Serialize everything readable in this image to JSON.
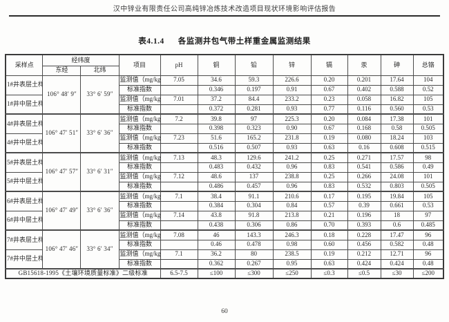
{
  "page": {
    "header": "汉中锌业有限责任公司高纯锌冶炼技术改造项目现状环境影响评估报告",
    "page_number": "60"
  },
  "table": {
    "title_no": "表4.1.4",
    "title_text": "各监测井包气带土样重金属监测结果",
    "headers": {
      "sample_point": "采样点",
      "coordinates": "经纬度",
      "east": "东经",
      "north": "北纬",
      "item": "项目",
      "ph": "pH",
      "metals": [
        "铜",
        "铅",
        "锌",
        "镉",
        "汞",
        "砷",
        "总铬"
      ]
    },
    "row_labels": {
      "monitor": "监测值（mg/kg）",
      "index": "标准指数"
    },
    "groups": [
      {
        "east": "106° 48′ 9″",
        "north": "33° 6′ 59″",
        "samples": [
          {
            "name": "1#井表层土样",
            "monitor": [
              "7.05",
              "34.6",
              "59.3",
              "226.6",
              "0.20",
              "0.201",
              "17.64",
              "104"
            ],
            "index": [
              "",
              "0.346",
              "0.197",
              "0.91",
              "0.67",
              "0.402",
              "0.588",
              "0.52"
            ]
          },
          {
            "name": "1#井中层土样",
            "monitor": [
              "7.01",
              "37.2",
              "84.4",
              "233.2",
              "0.23",
              "0.058",
              "16.82",
              "105"
            ],
            "index": [
              "",
              "0.372",
              "0.281",
              "0.93",
              "0.77",
              "0.116",
              "0.560",
              "0.53"
            ]
          }
        ]
      },
      {
        "east": "106° 47′ 51″",
        "north": "33° 6′ 36″",
        "samples": [
          {
            "name": "4#井表层土样",
            "monitor": [
              "7.2",
              "39.8",
              "97",
              "225.3",
              "0.20",
              "0.084",
              "17.38",
              "101"
            ],
            "index": [
              "",
              "0.398",
              "0.323",
              "0.90",
              "0.67",
              "0.168",
              "0.58",
              "0.505"
            ]
          },
          {
            "name": "4#井中层土样",
            "monitor": [
              "7.23",
              "51.6",
              "165.2",
              "231.8",
              "0.19",
              "0.080",
              "18.24",
              "103"
            ],
            "index": [
              "",
              "0.516",
              "0.507",
              "0.93",
              "0.63",
              "0.16",
              "0.608",
              "0.515"
            ]
          }
        ]
      },
      {
        "east": "106° 47′ 57″",
        "north": "33° 6′ 31″",
        "samples": [
          {
            "name": "5#井表层土样",
            "monitor": [
              "7.13",
              "48.3",
              "129.6",
              "241.2",
              "0.25",
              "0.271",
              "17.57",
              "98"
            ],
            "index": [
              "",
              "0.483",
              "0.432",
              "0.96",
              "0.83",
              "0.541",
              "0.586",
              "0.49"
            ]
          },
          {
            "name": "5#井中层土样",
            "monitor": [
              "7.12",
              "48.6",
              "137",
              "238.8",
              "0.25",
              "0.266",
              "24.08",
              "101"
            ],
            "index": [
              "",
              "0.486",
              "0.457",
              "0.96",
              "0.83",
              "0.532",
              "0.803",
              "0.505"
            ]
          }
        ]
      },
      {
        "east": "106° 47′ 49″",
        "north": "33° 6′ 36″",
        "samples": [
          {
            "name": "6#井表层土样",
            "monitor": [
              "7.1",
              "38.4",
              "91.1",
              "210.6",
              "0.17",
              "0.195",
              "19.84",
              "105"
            ],
            "index": [
              "",
              "0.384",
              "0.304",
              "0.84",
              "0.57",
              "0.39",
              "0.661",
              "0.53"
            ]
          },
          {
            "name": "6#井中层土样",
            "monitor": [
              "7.14",
              "43.8",
              "91.8",
              "213.8",
              "0.21",
              "0.196",
              "18",
              "97"
            ],
            "index": [
              "",
              "0.438",
              "0.306",
              "0.86",
              "0.70",
              "0.393",
              "0.6",
              "0.485"
            ]
          }
        ]
      },
      {
        "east": "106° 47′ 46″",
        "north": "33° 6′ 34″",
        "samples": [
          {
            "name": "7#井表层土样",
            "monitor": [
              "7.08",
              "46",
              "143.3",
              "246.3",
              "0.18",
              "0.228",
              "17.47",
              "96"
            ],
            "index": [
              "",
              "0.46",
              "0.478",
              "0.98",
              "0.60",
              "0.456",
              "0.582",
              "0.48"
            ]
          },
          {
            "name": "7#井中层土样",
            "monitor": [
              "7.1",
              "36.2",
              "80",
              "238.5",
              "0.19",
              "0.212",
              "12.71",
              "96"
            ],
            "index": [
              "",
              "0.362",
              "0.267",
              "0.95",
              "0.63",
              "0.424",
              "0.424",
              "0.48"
            ]
          }
        ]
      }
    ],
    "standard_row": {
      "label": "GB15618-1995《土壤环境质量标准》二级标准",
      "values": [
        "6.5-7.5",
        "≤100",
        "≤300",
        "≤250",
        "≤0.3",
        "≤0.5",
        "≤30",
        "≤200"
      ]
    }
  }
}
